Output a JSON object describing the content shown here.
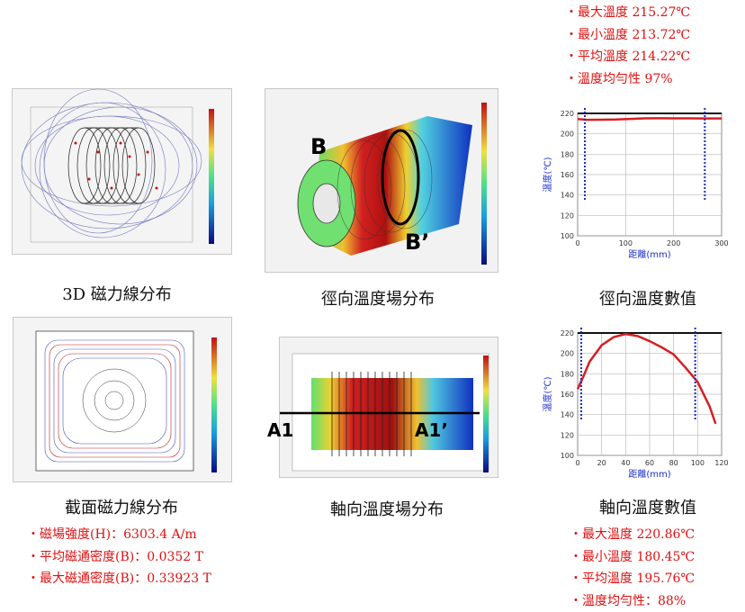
{
  "radial_stats": {
    "max": "・最大溫度 215.27℃",
    "min": "・最小溫度 213.72℃",
    "avg": "・平均溫度 214.22℃",
    "uniformity": "・溫度均勻性 97%"
  },
  "axial_stats": {
    "max": "・最大溫度 220.86℃",
    "min": "・最小溫度 180.45℃",
    "avg": "・平均溫度 195.76℃",
    "uniformity": "・溫度均勻性：88%"
  },
  "magnetic_stats": {
    "field_strength": "・磁場強度(H)：6303.4 A/m",
    "avg_flux": "・平均磁通密度(B)：0.0352 T",
    "max_flux": "・最大磁通密度(B)：0.33923 T"
  },
  "captions": {
    "field_3d": "3D 磁力線分布",
    "radial_field": "徑向溫度場分布",
    "radial_values": "徑向溫度數值",
    "cross_section": "截面磁力線分布",
    "axial_field": "軸向溫度場分布",
    "axial_values": "軸向溫度數值"
  },
  "labels": {
    "b": "B",
    "b_prime": "B’",
    "a1": "A1",
    "a1_prime": "A1’"
  },
  "chart_data": [
    {
      "type": "line",
      "name_ref": "radial",
      "xlabel": "距離(mm)",
      "ylabel": "溫度(℃)",
      "xlim": [
        0,
        300
      ],
      "ylim": [
        100,
        220
      ],
      "xticks": [
        0,
        100,
        200,
        300
      ],
      "yticks": [
        100,
        120,
        140,
        160,
        180,
        200,
        220
      ],
      "grid": true,
      "series": [
        {
          "color": "#d42020",
          "x": [
            0,
            20,
            50,
            80,
            110,
            140,
            170,
            200,
            230,
            260,
            300
          ],
          "y": [
            214.5,
            213.7,
            213.8,
            214.0,
            214.6,
            215.2,
            215.3,
            215.2,
            215.1,
            215.0,
            215.0
          ]
        }
      ],
      "markers_x": [
        15,
        265
      ],
      "marker_color": "#1a2ec8"
    },
    {
      "type": "line",
      "name_ref": "axial",
      "xlabel": "距離(mm)",
      "ylabel": "溫度(℃)",
      "xlim": [
        0,
        120
      ],
      "ylim": [
        100,
        220
      ],
      "xticks": [
        0,
        20,
        40,
        60,
        80,
        100,
        120
      ],
      "yticks": [
        100,
        120,
        140,
        160,
        180,
        200,
        220
      ],
      "grid": true,
      "series": [
        {
          "color": "#d42020",
          "x": [
            0,
            5,
            10,
            20,
            30,
            40,
            50,
            60,
            70,
            80,
            90,
            100,
            110,
            115
          ],
          "y": [
            165,
            178,
            192,
            208,
            216,
            219,
            217,
            212,
            206,
            199,
            186,
            172,
            148,
            131
          ]
        }
      ],
      "markers_x": [
        3,
        98
      ],
      "marker_color": "#1a2ec8"
    }
  ],
  "colors": {
    "stat_text": "#e01010",
    "marker_line": "#1a2ec8",
    "curve": "#d42020"
  }
}
